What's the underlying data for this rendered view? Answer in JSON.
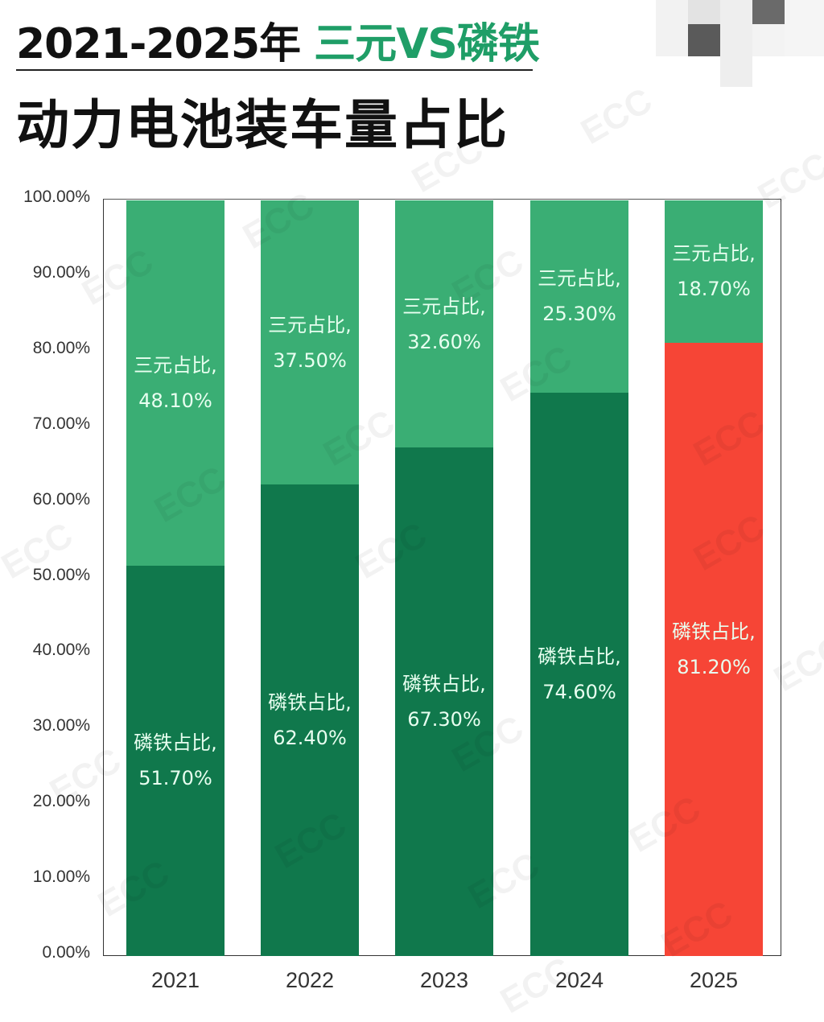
{
  "title": {
    "line1_prefix": "2021-2025年 ",
    "line1_accent": "三元VS磷铁",
    "line2": "动力电池装车量占比"
  },
  "colors": {
    "lfp": "#10784c",
    "ncm": "#3aae74",
    "lfp_highlight": "#f64536",
    "accent_text": "#1f9e67"
  },
  "watermark": "ECC",
  "y_ticks": [
    "100.00%",
    "90.00%",
    "80.00%",
    "70.00%",
    "60.00%",
    "50.00%",
    "40.00%",
    "30.00%",
    "20.00%",
    "10.00%",
    "0.00%"
  ],
  "bars": [
    {
      "year": "2021",
      "lfp_label": "磷铁占比,",
      "lfp_value": "51.70%",
      "ncm_label": "三元占比,",
      "ncm_value": "48.10%"
    },
    {
      "year": "2022",
      "lfp_label": "磷铁占比,",
      "lfp_value": "62.40%",
      "ncm_label": "三元占比,",
      "ncm_value": "37.50%"
    },
    {
      "year": "2023",
      "lfp_label": "磷铁占比,",
      "lfp_value": "67.30%",
      "ncm_label": "三元占比,",
      "ncm_value": "32.60%"
    },
    {
      "year": "2024",
      "lfp_label": "磷铁占比,",
      "lfp_value": "74.60%",
      "ncm_label": "三元占比,",
      "ncm_value": "25.30%"
    },
    {
      "year": "2025",
      "lfp_label": "磷铁占比,",
      "lfp_value": "81.20%",
      "ncm_label": "三元占比,",
      "ncm_value": "18.70%"
    }
  ],
  "chart_data": {
    "type": "bar",
    "stacked": true,
    "title": "2021-2025年 三元VS磷铁 动力电池装车量占比",
    "categories": [
      "2021",
      "2022",
      "2023",
      "2024",
      "2025"
    ],
    "series": [
      {
        "name": "磷铁占比",
        "values": [
          51.7,
          62.4,
          67.3,
          74.6,
          81.2
        ],
        "color": "#10784c",
        "highlight_color_2025": "#f64536"
      },
      {
        "name": "三元占比",
        "values": [
          48.1,
          37.5,
          32.6,
          25.3,
          18.7
        ],
        "color": "#3aae74"
      }
    ],
    "xlabel": "",
    "ylabel": "",
    "ylim": [
      0,
      100
    ],
    "y_tick_format": "percent_2dp",
    "grid": false,
    "legend": "none (data labels inside bars)"
  }
}
